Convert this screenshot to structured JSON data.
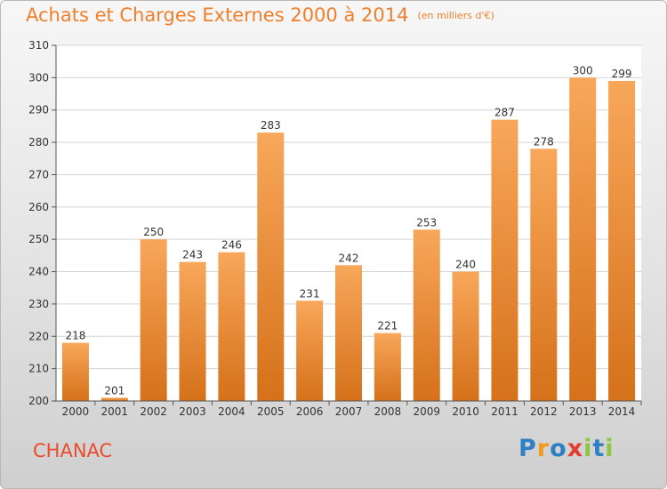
{
  "title": "Achats et Charges Externes 2000 à 2014",
  "unit": "(en milliers d'€)",
  "town": "CHANAC",
  "logo": {
    "text": "Proxiti",
    "letters": [
      "P",
      "r",
      "o",
      "x",
      "i",
      "t",
      "i"
    ],
    "colors": [
      "#2e7fc4",
      "#f39a1b",
      "#2e7fc4",
      "#e43c2f",
      "#8dc63f",
      "#2e7fc4",
      "#8dc63f"
    ]
  },
  "chart_data": {
    "type": "bar",
    "categories": [
      "2000",
      "2001",
      "2002",
      "2003",
      "2004",
      "2005",
      "2006",
      "2007",
      "2008",
      "2009",
      "2010",
      "2011",
      "2012",
      "2013",
      "2014"
    ],
    "values": [
      218,
      201,
      250,
      243,
      246,
      283,
      231,
      242,
      221,
      253,
      240,
      287,
      278,
      300,
      299
    ],
    "ylim": [
      200,
      310
    ],
    "yticks": [
      200,
      210,
      220,
      230,
      240,
      250,
      260,
      270,
      280,
      290,
      300,
      310
    ],
    "grid": true,
    "bar_color_top": "#f8a75a",
    "bar_color_bottom": "#d5711a"
  }
}
